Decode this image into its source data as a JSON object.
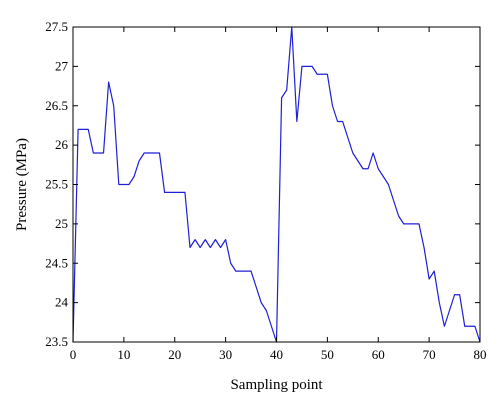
{
  "chart_data": {
    "type": "line",
    "title": "",
    "xlabel": "Sampling point",
    "ylabel": "Pressure (MPa)",
    "xlim": [
      0,
      80
    ],
    "ylim": [
      23.5,
      27.5
    ],
    "xticks": [
      "0",
      "10",
      "20",
      "30",
      "40",
      "50",
      "60",
      "70",
      "80"
    ],
    "yticks": [
      "23.5",
      "24",
      "24.5",
      "25",
      "25.5",
      "26",
      "26.5",
      "27",
      "27.5"
    ],
    "grid": false,
    "legend": "none",
    "series": [
      {
        "color": "#1f1fd6",
        "x": [
          0,
          1,
          2,
          3,
          4,
          5,
          6,
          7,
          8,
          9,
          10,
          11,
          12,
          13,
          14,
          15,
          16,
          17,
          18,
          19,
          20,
          21,
          22,
          23,
          24,
          25,
          26,
          27,
          28,
          29,
          30,
          31,
          32,
          33,
          34,
          35,
          36,
          37,
          38,
          39,
          40,
          41,
          42,
          43,
          44,
          45,
          46,
          47,
          48,
          49,
          50,
          51,
          52,
          53,
          54,
          55,
          56,
          57,
          58,
          59,
          60,
          61,
          62,
          63,
          64,
          65,
          66,
          67,
          68,
          69,
          70,
          71,
          72,
          73,
          74,
          75,
          76,
          77,
          78,
          79,
          80
        ],
        "y": [
          23.5,
          26.2,
          26.2,
          26.2,
          25.9,
          25.9,
          25.9,
          26.8,
          26.5,
          25.5,
          25.5,
          25.5,
          25.6,
          25.8,
          25.9,
          25.9,
          25.9,
          25.9,
          25.4,
          25.4,
          25.4,
          25.4,
          25.4,
          24.7,
          24.8,
          24.7,
          24.8,
          24.7,
          24.8,
          24.7,
          24.8,
          24.5,
          24.4,
          24.4,
          24.4,
          24.4,
          24.2,
          24.0,
          23.9,
          23.7,
          23.5,
          26.6,
          26.7,
          27.5,
          26.3,
          27.0,
          27.0,
          27.0,
          26.9,
          26.9,
          26.9,
          26.5,
          26.3,
          26.3,
          26.1,
          25.9,
          25.8,
          25.7,
          25.7,
          25.9,
          25.7,
          25.6,
          25.5,
          25.3,
          25.1,
          25.0,
          25.0,
          25.0,
          25.0,
          24.7,
          24.3,
          24.4,
          24.0,
          23.7,
          23.9,
          24.1,
          24.1,
          23.7,
          23.7,
          23.7,
          23.5
        ]
      }
    ]
  }
}
